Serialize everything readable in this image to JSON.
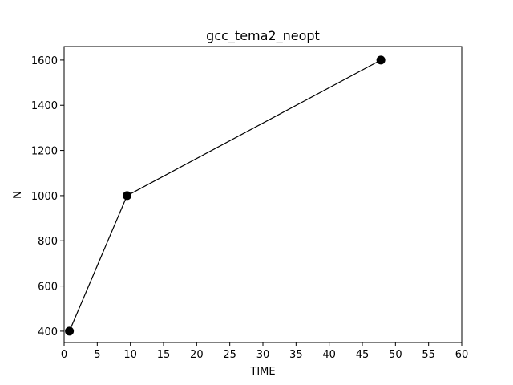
{
  "chart_data": {
    "type": "line",
    "title": "gcc_tema2_neopt",
    "xlabel": "TIME",
    "ylabel": "N",
    "xlim": [
      0,
      60
    ],
    "ylim": [
      350,
      1660
    ],
    "x_ticks": [
      0,
      5,
      10,
      15,
      20,
      25,
      30,
      35,
      40,
      45,
      50,
      55,
      60
    ],
    "y_ticks": [
      400,
      600,
      800,
      1000,
      1200,
      1400,
      1600
    ],
    "grid": false,
    "series": [
      {
        "x": [
          0.8,
          9.5,
          47.8
        ],
        "y": [
          400,
          1000,
          1600
        ],
        "color": "#000000",
        "marker": "circle"
      }
    ]
  }
}
